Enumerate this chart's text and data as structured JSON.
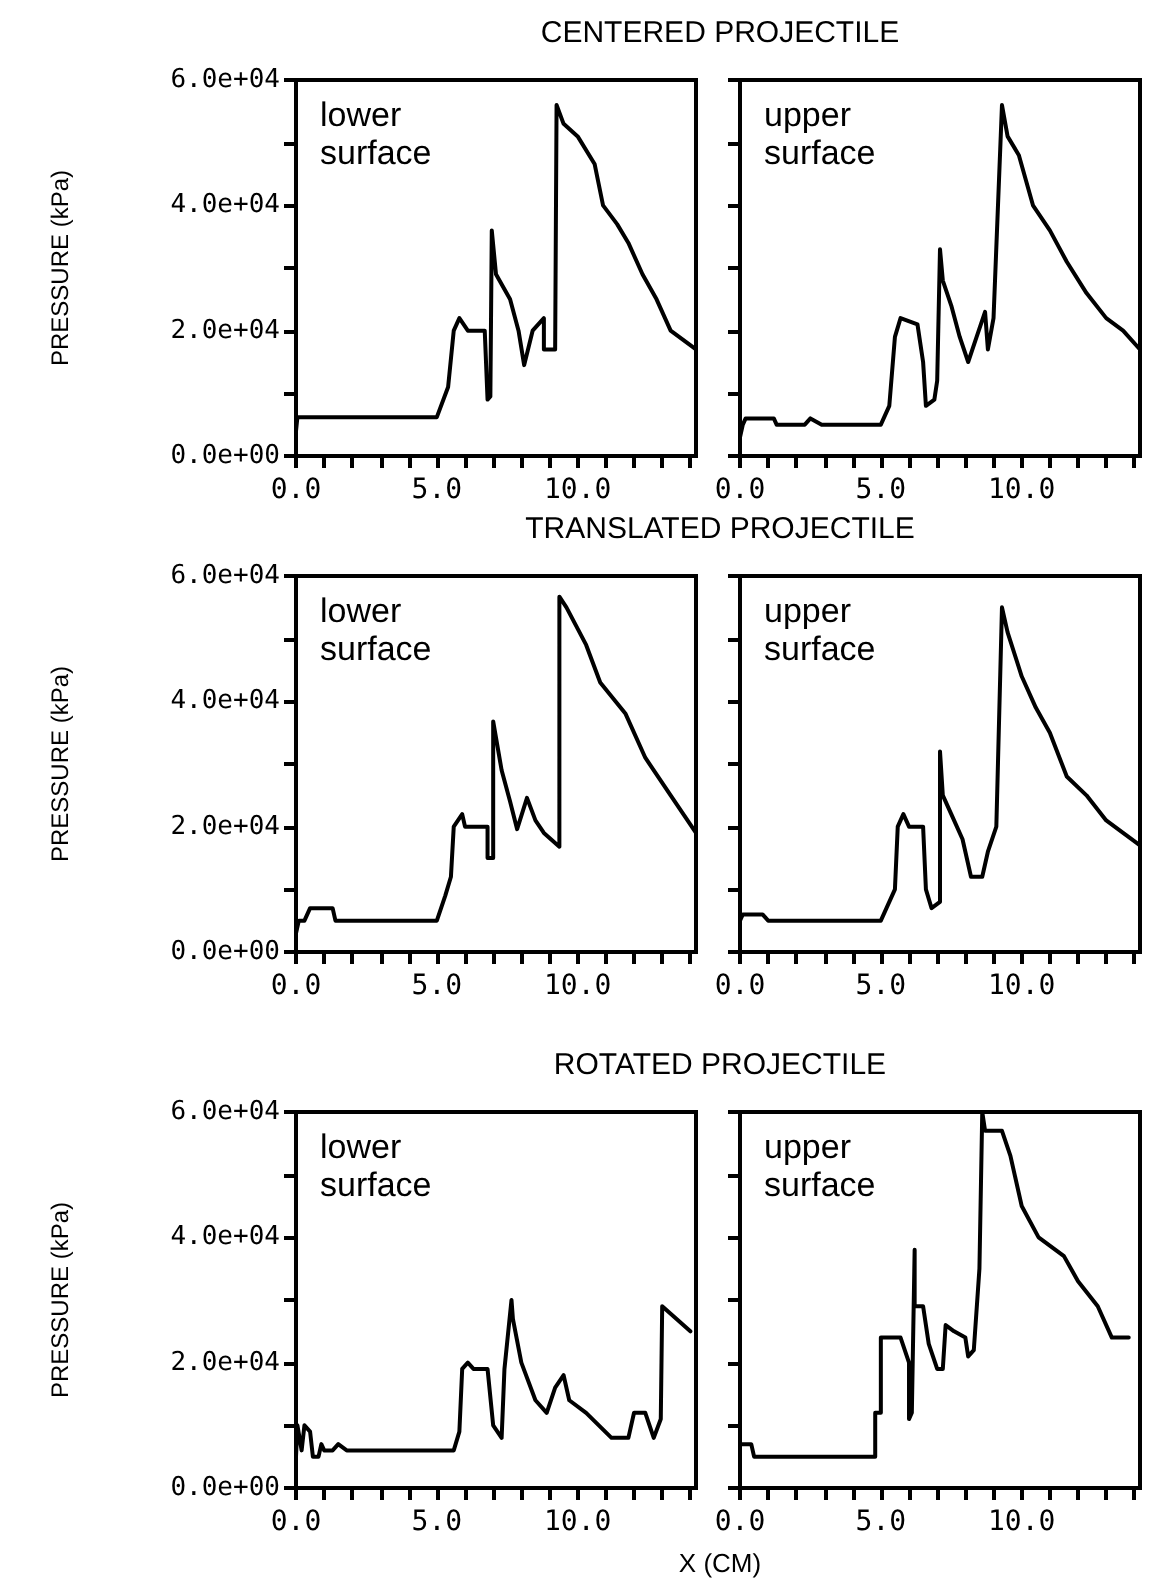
{
  "chart_data": [
    {
      "type": "line",
      "title": "CENTERED PROJECTILE",
      "ylabel": "PRESSURE (kPa)",
      "annotations": [
        "lower surface"
      ],
      "marker": "none",
      "line_style": "solid",
      "grid": false,
      "xlim": [
        0,
        14.2
      ],
      "ylim": [
        0,
        60000
      ],
      "xticks": [
        {
          "value": 0,
          "label": "0.0"
        },
        {
          "value": 1,
          "label": null
        },
        {
          "value": 2,
          "label": null
        },
        {
          "value": 3,
          "label": null
        },
        {
          "value": 4,
          "label": null
        },
        {
          "value": 5,
          "label": "5.0"
        },
        {
          "value": 6,
          "label": null
        },
        {
          "value": 7,
          "label": null
        },
        {
          "value": 8,
          "label": null
        },
        {
          "value": 9,
          "label": null
        },
        {
          "value": 10,
          "label": "10.0"
        },
        {
          "value": 11,
          "label": null
        },
        {
          "value": 12,
          "label": null
        },
        {
          "value": 13,
          "label": null
        },
        {
          "value": 14,
          "label": null
        }
      ],
      "yticks": [
        {
          "value": 0,
          "label": "0.0e+00"
        },
        {
          "value": 10000,
          "label": null
        },
        {
          "value": 20000,
          "label": "2.0e+04"
        },
        {
          "value": 30000,
          "label": null
        },
        {
          "value": 40000,
          "label": "4.0e+04"
        },
        {
          "value": 50000,
          "label": null
        },
        {
          "value": 60000,
          "label": "6.0e+04"
        }
      ],
      "series": [
        {
          "color": "#000000",
          "x": [
            0,
            0.05,
            0.1,
            5.0,
            5.4,
            5.6,
            5.8,
            6.1,
            6.7,
            6.8,
            6.9,
            6.95,
            7.1,
            7.6,
            7.9,
            8.1,
            8.4,
            8.8,
            8.8,
            9.2,
            9.25,
            9.5,
            10.0,
            10.6,
            10.9,
            11.4,
            11.8,
            12.3,
            12.8,
            13.3,
            14.2
          ],
          "values": [
            4000,
            6200,
            6200,
            6200,
            11000,
            20000,
            22000,
            20000,
            20000,
            9000,
            9500,
            36000,
            29000,
            25000,
            20000,
            14500,
            20000,
            22000,
            17000,
            17000,
            56000,
            53000,
            51000,
            46600,
            40000,
            37000,
            34000,
            29000,
            25000,
            20000,
            17000
          ]
        }
      ]
    },
    {
      "type": "line",
      "annotations": [
        "upper surface"
      ],
      "marker": "none",
      "line_style": "solid",
      "grid": false,
      "tick_labels": "x",
      "xlim": [
        0,
        14.2
      ],
      "ylim": [
        0,
        60000
      ],
      "xticks": [
        {
          "value": 0,
          "label": "0.0"
        },
        {
          "value": 1,
          "label": null
        },
        {
          "value": 2,
          "label": null
        },
        {
          "value": 3,
          "label": null
        },
        {
          "value": 4,
          "label": null
        },
        {
          "value": 5,
          "label": "5.0"
        },
        {
          "value": 6,
          "label": null
        },
        {
          "value": 7,
          "label": null
        },
        {
          "value": 8,
          "label": null
        },
        {
          "value": 9,
          "label": null
        },
        {
          "value": 10,
          "label": "10.0"
        },
        {
          "value": 11,
          "label": null
        },
        {
          "value": 12,
          "label": null
        },
        {
          "value": 13,
          "label": null
        },
        {
          "value": 14,
          "label": null
        }
      ],
      "yticks": [
        {
          "value": 0,
          "label": null
        },
        {
          "value": 10000,
          "label": null
        },
        {
          "value": 20000,
          "label": null
        },
        {
          "value": 30000,
          "label": null
        },
        {
          "value": 40000,
          "label": null
        },
        {
          "value": 50000,
          "label": null
        },
        {
          "value": 60000,
          "label": null
        }
      ],
      "series": [
        {
          "color": "#000000",
          "x": [
            0,
            0.1,
            0.2,
            1.2,
            1.3,
            2.3,
            2.5,
            2.9,
            5.0,
            5.3,
            5.5,
            5.7,
            6.3,
            6.5,
            6.6,
            6.9,
            7.0,
            7.1,
            7.2,
            7.5,
            7.8,
            8.1,
            8.4,
            8.7,
            8.8,
            9.0,
            9.3,
            9.5,
            9.9,
            10.4,
            11.0,
            11.6,
            12.3,
            13.0,
            13.6,
            14.2
          ],
          "values": [
            3000,
            5000,
            6000,
            6000,
            5000,
            5000,
            6000,
            5000,
            5000,
            8000,
            19000,
            22000,
            21000,
            15000,
            8000,
            9000,
            12000,
            33000,
            28000,
            24000,
            19000,
            15000,
            19000,
            23000,
            17000,
            22000,
            56000,
            51000,
            48000,
            40000,
            36000,
            31000,
            26000,
            22000,
            20000,
            17000
          ]
        }
      ]
    },
    {
      "type": "line",
      "title": "TRANSLATED PROJECTILE",
      "ylabel": "PRESSURE (kPa)",
      "annotations": [
        "lower surface"
      ],
      "marker": "none",
      "line_style": "solid",
      "grid": false,
      "xlim": [
        0,
        14.2
      ],
      "ylim": [
        0,
        60000
      ],
      "xticks": [
        {
          "value": 0,
          "label": "0.0"
        },
        {
          "value": 1,
          "label": null
        },
        {
          "value": 2,
          "label": null
        },
        {
          "value": 3,
          "label": null
        },
        {
          "value": 4,
          "label": null
        },
        {
          "value": 5,
          "label": "5.0"
        },
        {
          "value": 6,
          "label": null
        },
        {
          "value": 7,
          "label": null
        },
        {
          "value": 8,
          "label": null
        },
        {
          "value": 9,
          "label": null
        },
        {
          "value": 10,
          "label": "10.0"
        },
        {
          "value": 11,
          "label": null
        },
        {
          "value": 12,
          "label": null
        },
        {
          "value": 13,
          "label": null
        },
        {
          "value": 14,
          "label": null
        }
      ],
      "yticks": [
        {
          "value": 0,
          "label": "0.0e+00"
        },
        {
          "value": 10000,
          "label": null
        },
        {
          "value": 20000,
          "label": "2.0e+04"
        },
        {
          "value": 30000,
          "label": null
        },
        {
          "value": 40000,
          "label": "4.0e+04"
        },
        {
          "value": 50000,
          "label": null
        },
        {
          "value": 60000,
          "label": "6.0e+04"
        }
      ],
      "series": [
        {
          "color": "#000000",
          "x": [
            0,
            0.1,
            0.3,
            0.5,
            1.3,
            1.4,
            5.0,
            5.3,
            5.5,
            5.6,
            5.9,
            6.0,
            6.8,
            6.8,
            7.0,
            7.0,
            7.3,
            7.6,
            7.85,
            8.2,
            8.5,
            8.8,
            9.35,
            9.35,
            9.6,
            10.3,
            10.8,
            11.7,
            12.4,
            13.3,
            14.2
          ],
          "values": [
            3000,
            5000,
            5000,
            7000,
            7000,
            5000,
            5000,
            9000,
            12000,
            20000,
            22000,
            20000,
            20000,
            15000,
            15000,
            36800,
            29000,
            24000,
            19600,
            24600,
            21000,
            19000,
            16800,
            56700,
            55000,
            49000,
            43000,
            38000,
            31000,
            25000,
            19000
          ]
        }
      ]
    },
    {
      "type": "line",
      "annotations": [
        "upper surface"
      ],
      "marker": "none",
      "line_style": "solid",
      "grid": false,
      "tick_labels": "x",
      "xlim": [
        0,
        14.2
      ],
      "ylim": [
        0,
        60000
      ],
      "xticks": [
        {
          "value": 0,
          "label": "0.0"
        },
        {
          "value": 1,
          "label": null
        },
        {
          "value": 2,
          "label": null
        },
        {
          "value": 3,
          "label": null
        },
        {
          "value": 4,
          "label": null
        },
        {
          "value": 5,
          "label": "5.0"
        },
        {
          "value": 6,
          "label": null
        },
        {
          "value": 7,
          "label": null
        },
        {
          "value": 8,
          "label": null
        },
        {
          "value": 9,
          "label": null
        },
        {
          "value": 10,
          "label": "10.0"
        },
        {
          "value": 11,
          "label": null
        },
        {
          "value": 12,
          "label": null
        },
        {
          "value": 13,
          "label": null
        },
        {
          "value": 14,
          "label": null
        }
      ],
      "yticks": [
        {
          "value": 0,
          "label": null
        },
        {
          "value": 10000,
          "label": null
        },
        {
          "value": 20000,
          "label": null
        },
        {
          "value": 30000,
          "label": null
        },
        {
          "value": 40000,
          "label": null
        },
        {
          "value": 50000,
          "label": null
        },
        {
          "value": 60000,
          "label": null
        }
      ],
      "series": [
        {
          "color": "#000000",
          "x": [
            0,
            0.1,
            0.8,
            1.0,
            5.0,
            5.2,
            5.5,
            5.6,
            5.8,
            6.0,
            6.5,
            6.6,
            6.8,
            7.1,
            7.1,
            7.2,
            7.5,
            7.9,
            8.2,
            8.6,
            8.8,
            9.1,
            9.3,
            9.5,
            10.0,
            10.5,
            11.0,
            11.6,
            12.3,
            13.0,
            13.6,
            14.2
          ],
          "values": [
            5000,
            6000,
            6000,
            5000,
            5000,
            7000,
            10000,
            20000,
            22000,
            20000,
            20000,
            10000,
            7000,
            8000,
            32000,
            25000,
            22000,
            18000,
            12000,
            12000,
            16000,
            20000,
            55000,
            51000,
            44000,
            39000,
            35000,
            28000,
            25000,
            21000,
            19000,
            17000
          ]
        }
      ]
    },
    {
      "type": "line",
      "title": "ROTATED PROJECTILE",
      "ylabel": "PRESSURE (kPa)",
      "xlabel": "X (CM)",
      "annotations": [
        "lower surface"
      ],
      "marker": "none",
      "line_style": "solid",
      "grid": false,
      "xlim": [
        0,
        14.2
      ],
      "ylim": [
        0,
        60000
      ],
      "xticks": [
        {
          "value": 0,
          "label": "0.0"
        },
        {
          "value": 1,
          "label": null
        },
        {
          "value": 2,
          "label": null
        },
        {
          "value": 3,
          "label": null
        },
        {
          "value": 4,
          "label": null
        },
        {
          "value": 5,
          "label": "5.0"
        },
        {
          "value": 6,
          "label": null
        },
        {
          "value": 7,
          "label": null
        },
        {
          "value": 8,
          "label": null
        },
        {
          "value": 9,
          "label": null
        },
        {
          "value": 10,
          "label": "10.0"
        },
        {
          "value": 11,
          "label": null
        },
        {
          "value": 12,
          "label": null
        },
        {
          "value": 13,
          "label": null
        },
        {
          "value": 14,
          "label": null
        }
      ],
      "yticks": [
        {
          "value": 0,
          "label": "0.0e+00"
        },
        {
          "value": 10000,
          "label": null
        },
        {
          "value": 20000,
          "label": "2.0e+04"
        },
        {
          "value": 30000,
          "label": null
        },
        {
          "value": 40000,
          "label": "4.0e+04"
        },
        {
          "value": 50000,
          "label": null
        },
        {
          "value": 60000,
          "label": "6.0e+04"
        }
      ],
      "series": [
        {
          "color": "#000000",
          "x": [
            0,
            0.05,
            0.2,
            0.3,
            0.5,
            0.6,
            0.8,
            0.9,
            1.0,
            1.3,
            1.5,
            1.8,
            5.6,
            5.8,
            5.9,
            6.1,
            6.3,
            6.8,
            7.0,
            7.3,
            7.4,
            7.65,
            7.7,
            8.0,
            8.5,
            8.9,
            9.2,
            9.5,
            9.7,
            10.3,
            11.2,
            11.8,
            12.0,
            12.4,
            12.7,
            12.95,
            13.0,
            13.5,
            14.0
          ],
          "values": [
            5000,
            10000,
            6000,
            10000,
            9000,
            5000,
            5000,
            7000,
            6000,
            6000,
            7000,
            6000,
            6000,
            9000,
            19000,
            20000,
            19000,
            19000,
            10000,
            8000,
            19000,
            30000,
            27000,
            20000,
            14000,
            12000,
            16000,
            18000,
            14000,
            12000,
            8000,
            8000,
            12000,
            12000,
            8000,
            11000,
            29000,
            27000,
            25000
          ]
        }
      ]
    },
    {
      "type": "line",
      "annotations": [
        "upper surface"
      ],
      "marker": "none",
      "line_style": "solid",
      "grid": false,
      "tick_labels": "x",
      "xlim": [
        0,
        14.2
      ],
      "ylim": [
        0,
        60000
      ],
      "xticks": [
        {
          "value": 0,
          "label": "0.0"
        },
        {
          "value": 1,
          "label": null
        },
        {
          "value": 2,
          "label": null
        },
        {
          "value": 3,
          "label": null
        },
        {
          "value": 4,
          "label": null
        },
        {
          "value": 5,
          "label": "5.0"
        },
        {
          "value": 6,
          "label": null
        },
        {
          "value": 7,
          "label": null
        },
        {
          "value": 8,
          "label": null
        },
        {
          "value": 9,
          "label": null
        },
        {
          "value": 10,
          "label": "10.0"
        },
        {
          "value": 11,
          "label": null
        },
        {
          "value": 12,
          "label": null
        },
        {
          "value": 13,
          "label": null
        },
        {
          "value": 14,
          "label": null
        }
      ],
      "yticks": [
        {
          "value": 0,
          "label": null
        },
        {
          "value": 10000,
          "label": null
        },
        {
          "value": 20000,
          "label": null
        },
        {
          "value": 30000,
          "label": null
        },
        {
          "value": 40000,
          "label": null
        },
        {
          "value": 50000,
          "label": null
        },
        {
          "value": 60000,
          "label": null
        }
      ],
      "series": [
        {
          "color": "#000000",
          "x": [
            0,
            0.4,
            0.5,
            4.8,
            4.8,
            5.0,
            5.0,
            5.7,
            6.0,
            6.0,
            6.1,
            6.2,
            6.2,
            6.5,
            6.7,
            7.0,
            7.2,
            7.3,
            7.6,
            8.0,
            8.1,
            8.3,
            8.5,
            8.6,
            8.7,
            9.3,
            9.6,
            10.0,
            10.6,
            11.5,
            12.0,
            12.7,
            13.2,
            13.8
          ],
          "values": [
            7000,
            7000,
            5000,
            5000,
            12000,
            12000,
            24000,
            24000,
            20000,
            11000,
            12000,
            38000,
            29000,
            29000,
            23000,
            19000,
            19000,
            26000,
            25000,
            24000,
            21000,
            22000,
            35000,
            60000,
            57000,
            57000,
            53000,
            45000,
            40000,
            37000,
            33000,
            29000,
            24000,
            24000
          ]
        }
      ]
    }
  ]
}
